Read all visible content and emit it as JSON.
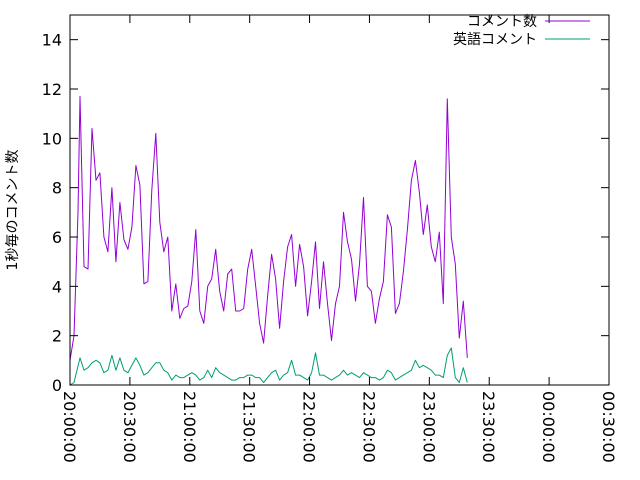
{
  "chart_data": {
    "type": "line",
    "ylabel": "1秒毎のコメント数",
    "xlabel": "",
    "ylim": [
      0,
      15
    ],
    "yticks": [
      "0",
      "2",
      "4",
      "6",
      "8",
      "10",
      "12",
      "14"
    ],
    "xlim_minutes": [
      0,
      270
    ],
    "xticks": [
      "20:00:00",
      "20:30:00",
      "21:00:00",
      "21:30:00",
      "22:00:00",
      "22:30:00",
      "23:00:00",
      "23:30:00",
      "00:00:00",
      "00:30:00"
    ],
    "grid": false,
    "legend_position": "top-right",
    "series": [
      {
        "name": "コメント数",
        "color": "#9400d3",
        "points": [
          [
            0,
            1.0
          ],
          [
            2,
            2.0
          ],
          [
            4,
            7.0
          ],
          [
            5,
            11.7
          ],
          [
            7,
            4.8
          ],
          [
            9,
            4.7
          ],
          [
            11,
            10.4
          ],
          [
            13,
            8.3
          ],
          [
            15,
            8.6
          ],
          [
            17,
            6.0
          ],
          [
            19,
            5.4
          ],
          [
            21,
            8.0
          ],
          [
            23,
            5.0
          ],
          [
            25,
            7.4
          ],
          [
            27,
            5.9
          ],
          [
            29,
            5.5
          ],
          [
            31,
            6.4
          ],
          [
            33,
            8.9
          ],
          [
            35,
            8.1
          ],
          [
            37,
            4.1
          ],
          [
            39,
            4.2
          ],
          [
            41,
            7.9
          ],
          [
            43,
            10.2
          ],
          [
            45,
            6.6
          ],
          [
            47,
            5.4
          ],
          [
            49,
            6.0
          ],
          [
            51,
            3.0
          ],
          [
            53,
            4.1
          ],
          [
            55,
            2.7
          ],
          [
            57,
            3.1
          ],
          [
            59,
            3.2
          ],
          [
            61,
            4.2
          ],
          [
            63,
            6.3
          ],
          [
            65,
            3.0
          ],
          [
            67,
            2.5
          ],
          [
            69,
            4.0
          ],
          [
            71,
            4.3
          ],
          [
            73,
            5.5
          ],
          [
            75,
            3.8
          ],
          [
            77,
            3.0
          ],
          [
            79,
            4.5
          ],
          [
            81,
            4.7
          ],
          [
            83,
            3.0
          ],
          [
            85,
            3.0
          ],
          [
            87,
            3.1
          ],
          [
            89,
            4.7
          ],
          [
            91,
            5.5
          ],
          [
            93,
            4.0
          ],
          [
            95,
            2.5
          ],
          [
            97,
            1.7
          ],
          [
            99,
            3.6
          ],
          [
            101,
            5.3
          ],
          [
            103,
            4.3
          ],
          [
            105,
            2.3
          ],
          [
            107,
            4.2
          ],
          [
            109,
            5.6
          ],
          [
            111,
            6.1
          ],
          [
            113,
            4.0
          ],
          [
            115,
            5.7
          ],
          [
            117,
            4.8
          ],
          [
            119,
            2.8
          ],
          [
            121,
            4.2
          ],
          [
            123,
            5.8
          ],
          [
            125,
            3.1
          ],
          [
            127,
            5.0
          ],
          [
            129,
            3.3
          ],
          [
            131,
            1.8
          ],
          [
            133,
            3.3
          ],
          [
            135,
            4.0
          ],
          [
            137,
            7.0
          ],
          [
            139,
            5.8
          ],
          [
            141,
            5.1
          ],
          [
            143,
            3.4
          ],
          [
            145,
            4.9
          ],
          [
            147,
            7.6
          ],
          [
            149,
            4.0
          ],
          [
            151,
            3.8
          ],
          [
            153,
            2.5
          ],
          [
            155,
            3.5
          ],
          [
            157,
            4.2
          ],
          [
            159,
            6.9
          ],
          [
            161,
            6.4
          ],
          [
            163,
            2.9
          ],
          [
            165,
            3.3
          ],
          [
            167,
            4.6
          ],
          [
            169,
            6.3
          ],
          [
            171,
            8.3
          ],
          [
            173,
            9.1
          ],
          [
            175,
            7.8
          ],
          [
            177,
            6.1
          ],
          [
            179,
            7.3
          ],
          [
            181,
            5.6
          ],
          [
            183,
            5.0
          ],
          [
            185,
            6.2
          ],
          [
            187,
            3.3
          ],
          [
            189,
            11.6
          ],
          [
            191,
            6.0
          ],
          [
            193,
            4.9
          ],
          [
            195,
            1.9
          ],
          [
            197,
            3.4
          ],
          [
            199,
            1.1
          ]
        ]
      },
      {
        "name": "英語コメント",
        "color": "#009e73",
        "points": [
          [
            0,
            0.0
          ],
          [
            2,
            0.1
          ],
          [
            5,
            1.1
          ],
          [
            7,
            0.6
          ],
          [
            9,
            0.7
          ],
          [
            11,
            0.9
          ],
          [
            13,
            1.0
          ],
          [
            15,
            0.9
          ],
          [
            17,
            0.5
          ],
          [
            19,
            0.6
          ],
          [
            21,
            1.2
          ],
          [
            23,
            0.6
          ],
          [
            25,
            1.1
          ],
          [
            27,
            0.6
          ],
          [
            29,
            0.5
          ],
          [
            31,
            0.8
          ],
          [
            33,
            1.1
          ],
          [
            35,
            0.8
          ],
          [
            37,
            0.4
          ],
          [
            39,
            0.5
          ],
          [
            41,
            0.7
          ],
          [
            43,
            0.9
          ],
          [
            45,
            0.9
          ],
          [
            47,
            0.6
          ],
          [
            49,
            0.5
          ],
          [
            51,
            0.2
          ],
          [
            53,
            0.4
          ],
          [
            55,
            0.3
          ],
          [
            57,
            0.3
          ],
          [
            59,
            0.4
          ],
          [
            61,
            0.5
          ],
          [
            63,
            0.4
          ],
          [
            65,
            0.2
          ],
          [
            67,
            0.3
          ],
          [
            69,
            0.6
          ],
          [
            71,
            0.3
          ],
          [
            73,
            0.7
          ],
          [
            75,
            0.5
          ],
          [
            77,
            0.4
          ],
          [
            79,
            0.3
          ],
          [
            81,
            0.2
          ],
          [
            83,
            0.2
          ],
          [
            85,
            0.3
          ],
          [
            87,
            0.3
          ],
          [
            89,
            0.4
          ],
          [
            91,
            0.4
          ],
          [
            93,
            0.3
          ],
          [
            95,
            0.3
          ],
          [
            97,
            0.1
          ],
          [
            99,
            0.3
          ],
          [
            101,
            0.5
          ],
          [
            103,
            0.6
          ],
          [
            105,
            0.2
          ],
          [
            107,
            0.4
          ],
          [
            109,
            0.5
          ],
          [
            111,
            1.0
          ],
          [
            113,
            0.4
          ],
          [
            115,
            0.4
          ],
          [
            117,
            0.3
          ],
          [
            119,
            0.2
          ],
          [
            121,
            0.5
          ],
          [
            123,
            1.3
          ],
          [
            125,
            0.4
          ],
          [
            127,
            0.4
          ],
          [
            129,
            0.3
          ],
          [
            131,
            0.2
          ],
          [
            133,
            0.3
          ],
          [
            135,
            0.4
          ],
          [
            137,
            0.6
          ],
          [
            139,
            0.4
          ],
          [
            141,
            0.5
          ],
          [
            143,
            0.4
          ],
          [
            145,
            0.3
          ],
          [
            147,
            0.5
          ],
          [
            149,
            0.4
          ],
          [
            151,
            0.3
          ],
          [
            153,
            0.3
          ],
          [
            155,
            0.2
          ],
          [
            157,
            0.3
          ],
          [
            159,
            0.6
          ],
          [
            161,
            0.5
          ],
          [
            163,
            0.2
          ],
          [
            165,
            0.3
          ],
          [
            167,
            0.4
          ],
          [
            169,
            0.5
          ],
          [
            171,
            0.6
          ],
          [
            173,
            1.0
          ],
          [
            175,
            0.7
          ],
          [
            177,
            0.8
          ],
          [
            179,
            0.7
          ],
          [
            181,
            0.6
          ],
          [
            183,
            0.4
          ],
          [
            185,
            0.4
          ],
          [
            187,
            0.3
          ],
          [
            189,
            1.2
          ],
          [
            191,
            1.5
          ],
          [
            193,
            0.3
          ],
          [
            195,
            0.1
          ],
          [
            197,
            0.7
          ],
          [
            199,
            0.1
          ]
        ]
      }
    ]
  }
}
